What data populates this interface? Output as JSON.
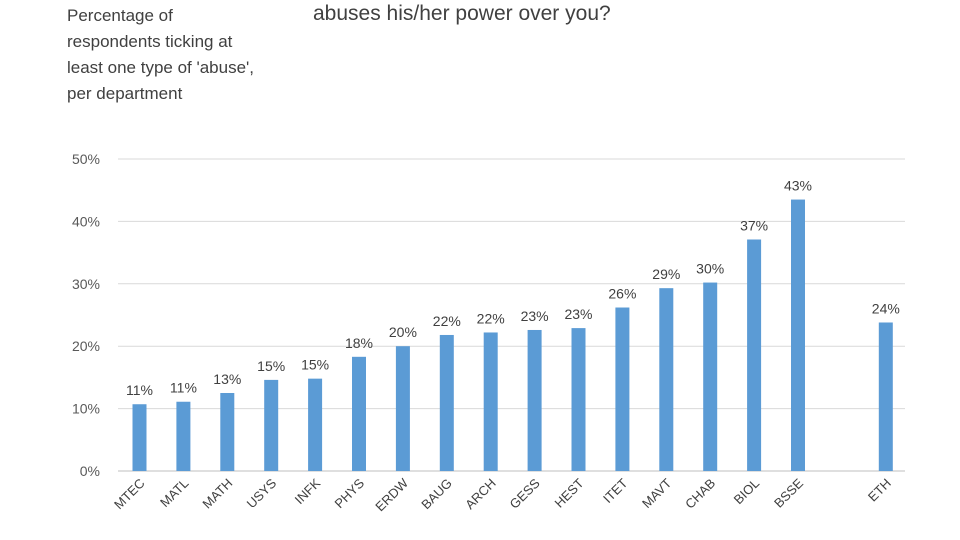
{
  "chart_data": {
    "type": "bar",
    "title": "abuses his/her power over you?",
    "ylabel": "Percentage of respondents ticking at least one type of 'abuse', per department",
    "xlabel": "",
    "ylim": [
      0,
      50
    ],
    "yticks": [
      "0%",
      "10%",
      "20%",
      "30%",
      "40%",
      "50%"
    ],
    "categories": [
      "MTEC",
      "MATL",
      "MATH",
      "USYS",
      "INFK",
      "PHYS",
      "ERDW",
      "BAUG",
      "ARCH",
      "GESS",
      "HEST",
      "ITET",
      "MAVT",
      "CHAB",
      "BIOL",
      "BSSE",
      "ETH"
    ],
    "values": [
      10.7,
      11.1,
      12.5,
      14.6,
      14.8,
      18.3,
      20.0,
      21.8,
      22.2,
      22.6,
      22.9,
      26.2,
      29.3,
      30.2,
      37.1,
      43.5,
      23.8
    ],
    "labels": [
      "11%",
      "11%",
      "13%",
      "15%",
      "15%",
      "18%",
      "20%",
      "22%",
      "22%",
      "23%",
      "23%",
      "26%",
      "29%",
      "30%",
      "37%",
      "43%",
      "24%"
    ],
    "grid": true,
    "legend": "none",
    "bar_color": "#5b9bd5"
  }
}
